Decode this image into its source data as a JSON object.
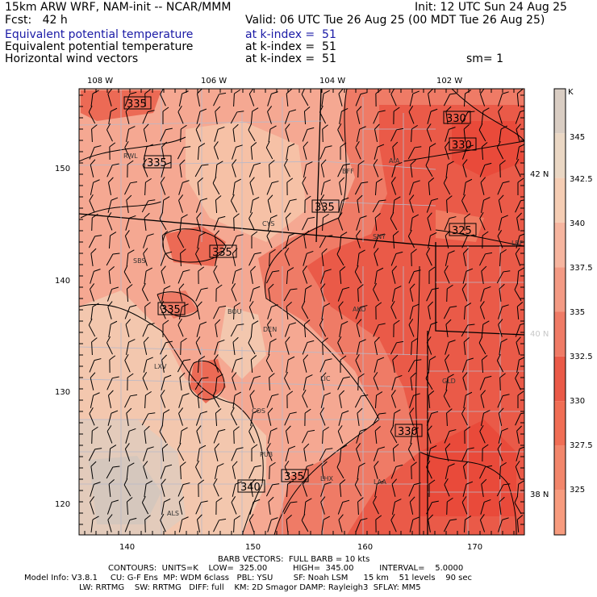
{
  "header": {
    "model": "15km ARW WRF, NAM-init -- NCAR/MMM",
    "init": "Init: 12 UTC Sun 24 Aug 25",
    "fcst": "Fcst:   42 h",
    "valid": "Valid: 06 UTC Tue 26 Aug 25 (00 MDT Tue 26 Aug 25)",
    "fields": [
      {
        "name": "Equivalent potential temperature",
        "level": "at k-index =  51"
      },
      {
        "name": "Equivalent potential temperature",
        "level": "at k-index =  51"
      },
      {
        "name": "Horizontal wind vectors",
        "level": "at k-index =  51"
      }
    ],
    "smoothing": "sm= 1"
  },
  "map": {
    "lon_labels": [
      "108 W",
      "106 W",
      "104 W",
      "102 W"
    ],
    "lat_labels": [
      "42 N",
      "40 N",
      "38 N"
    ],
    "x_ticks": [
      "140",
      "150",
      "160",
      "170"
    ],
    "y_ticks": [
      "150",
      "140",
      "130",
      "120"
    ],
    "stations": [
      "RWL",
      "BFF",
      "AIA",
      "CYS",
      "SNY",
      "LBF",
      "SBS",
      "BOU",
      "AKO",
      "DEN",
      "LXV",
      "LIC",
      "GLD",
      "COS",
      "PUB",
      "LHX",
      "LAA",
      "ALS"
    ],
    "contour_labels": [
      "335",
      "335",
      "335",
      "335",
      "335",
      "335",
      "330",
      "330",
      "325",
      "330",
      "340"
    ]
  },
  "colorbar": {
    "unit": "K",
    "labels": [
      "345",
      "342.5",
      "340",
      "337.5",
      "335",
      "332.5",
      "330",
      "327.5",
      "325"
    ],
    "colors": [
      "#d9cdc3",
      "#ead7c4",
      "#f5cdb4",
      "#f6b59f",
      "#f39a84",
      "#ef7b66",
      "#ea5a48",
      "#f06e55",
      "#f2866b",
      "#f79b7e"
    ]
  },
  "footer": {
    "barb": "BARB VECTORS:  FULL BARB = 10 kts",
    "contours": "CONTOURS:  UNITS=K    LOW=  325.00          HIGH=  345.00          INTERVAL=    5.0000",
    "model_info": "Model Info: V3.8.1     CU: G-F Ens  MP: WDM 6class   PBL: YSU        SF: Noah LSM      15 km    51 levels    90 sec",
    "model_info2": "LW: RRTMG    SW: RRTMG   DIFF: full    KM: 2D Smagor DAMP: Rayleigh3  SFLAY: MM5"
  }
}
